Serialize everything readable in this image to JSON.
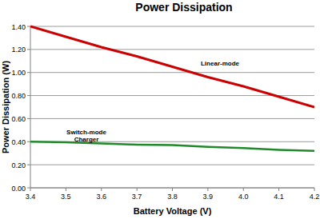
{
  "chart_data": {
    "type": "line",
    "title": "Power Dissipation",
    "x_label": "Battery Voltage (V)",
    "y_label": "Power Dissipation (W)",
    "x": [
      3.4,
      3.5,
      3.6,
      3.7,
      3.8,
      3.9,
      4.0,
      4.1,
      4.2
    ],
    "series": [
      {
        "name": "Linear-mode",
        "color": "#cc0000",
        "values": [
          1.4,
          1.31,
          1.22,
          1.14,
          1.05,
          0.96,
          0.88,
          0.79,
          0.7
        ]
      },
      {
        "name": "Switch-mode Charger",
        "color": "#1f8a2a",
        "values": [
          0.4,
          0.395,
          0.385,
          0.375,
          0.37,
          0.355,
          0.345,
          0.33,
          0.32
        ]
      }
    ],
    "annotations": [
      "Linear-mode",
      "Switch-mode",
      "Charger"
    ],
    "xlim": [
      3.4,
      4.2
    ],
    "xticks": [
      3.4,
      3.5,
      3.6,
      3.7,
      3.8,
      3.9,
      {
        "value": 4.0,
        "label": "4.0"
      },
      4.1,
      4.2
    ],
    "ylim": [
      0,
      1.4
    ],
    "yticks": [
      {
        "value": 0,
        "label": "0.00"
      },
      {
        "value": 0.2,
        "label": "0.20"
      },
      {
        "value": 0.4,
        "label": "0.40"
      },
      {
        "value": 0.6,
        "label": "0.60"
      },
      {
        "value": 0.8,
        "label": "0.80"
      },
      {
        "value": 1.0,
        "label": "1.00"
      },
      {
        "value": 1.2,
        "label": "1.20"
      },
      {
        "value": 1.4,
        "label": "1.40"
      }
    ],
    "grid": true
  }
}
